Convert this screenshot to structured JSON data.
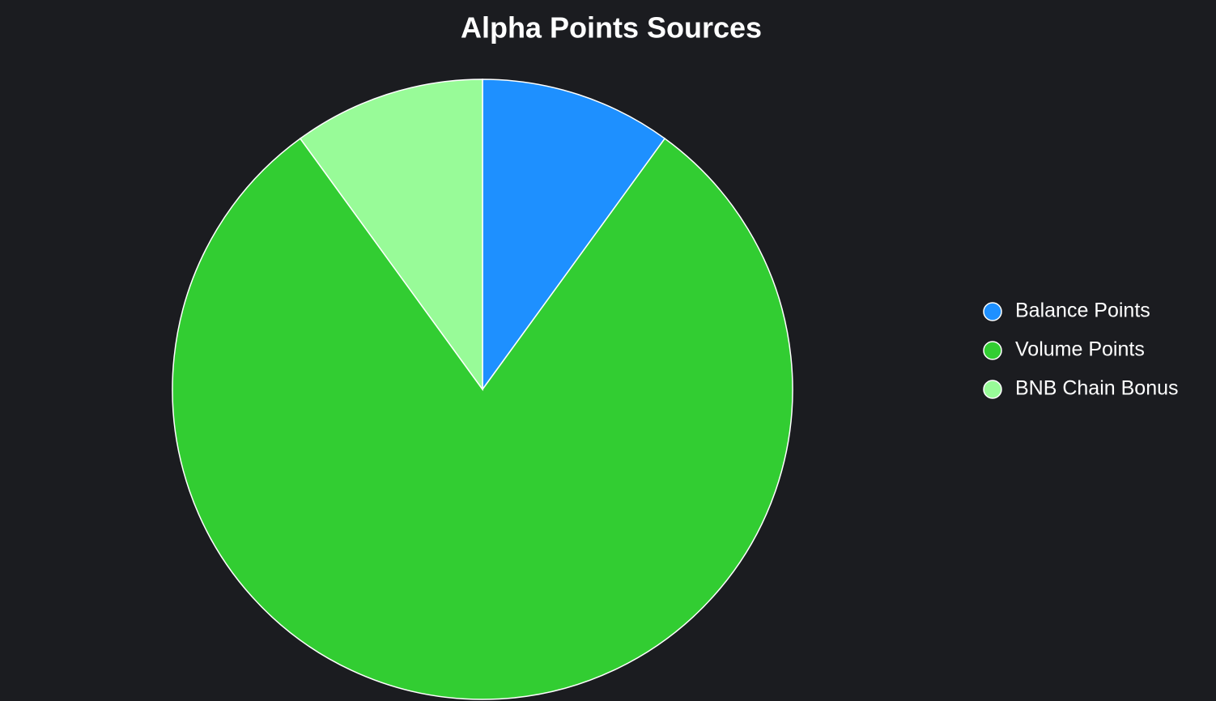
{
  "chart_data": {
    "type": "pie",
    "title": "Alpha Points Sources",
    "categories": [
      "Balance Points",
      "Volume Points",
      "BNB Chain Bonus"
    ],
    "values": [
      10,
      80,
      10
    ],
    "colors": [
      "#1e90ff",
      "#32cd32",
      "#98fb98"
    ],
    "legend": "right"
  }
}
